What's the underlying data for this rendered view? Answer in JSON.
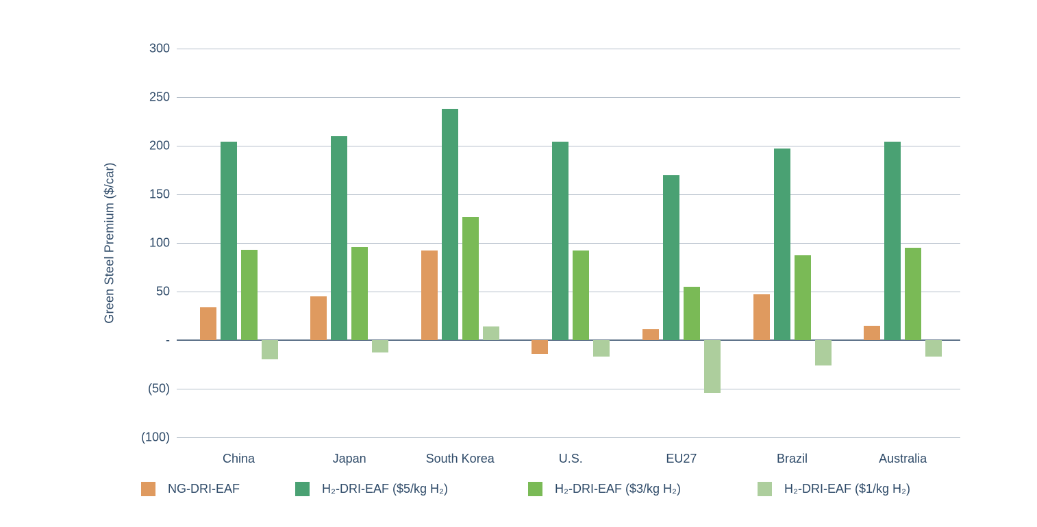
{
  "chart_data": {
    "type": "bar",
    "title": "",
    "ylabel": "Green Steel Premium ($/car)",
    "xlabel": "",
    "ylim": [
      -100,
      300
    ],
    "grid": "horizontal",
    "legend_position": "bottom",
    "categories": [
      "China",
      "Japan",
      "South Korea",
      "U.S.",
      "EU27",
      "Brazil",
      "Australia"
    ],
    "series": [
      {
        "name": "NG-DRI-EAF",
        "color": "#DF9A5F",
        "values": [
          34,
          45,
          92,
          -14,
          11,
          47,
          15
        ]
      },
      {
        "name": "H₂-DRI-EAF ($5/kg H₂)",
        "color": "#4AA173",
        "values": [
          204,
          210,
          238,
          204,
          170,
          197,
          204
        ]
      },
      {
        "name": "H₂-DRI-EAF ($3/kg H₂)",
        "color": "#7ABA56",
        "values": [
          93,
          96,
          127,
          92,
          55,
          87,
          95
        ]
      },
      {
        "name": "H₂-DRI-EAF ($1/kg H₂)",
        "color": "#ADCE9D",
        "values": [
          -20,
          -13,
          14,
          -17,
          -54,
          -26,
          -17
        ]
      }
    ],
    "yticks": [
      {
        "value": 300,
        "label": "300"
      },
      {
        "value": 250,
        "label": "250"
      },
      {
        "value": 200,
        "label": "200"
      },
      {
        "value": 150,
        "label": "150"
      },
      {
        "value": 100,
        "label": "100"
      },
      {
        "value": 50,
        "label": "50"
      },
      {
        "value": 0,
        "label": "-"
      },
      {
        "value": -50,
        "label": "(50)"
      },
      {
        "value": -100,
        "label": "(100)"
      }
    ]
  },
  "colors": {
    "text": "#2E4A68",
    "gridline": "#B3BDC9",
    "zero_line": "#5F738A",
    "background": "#FFFFFF"
  }
}
